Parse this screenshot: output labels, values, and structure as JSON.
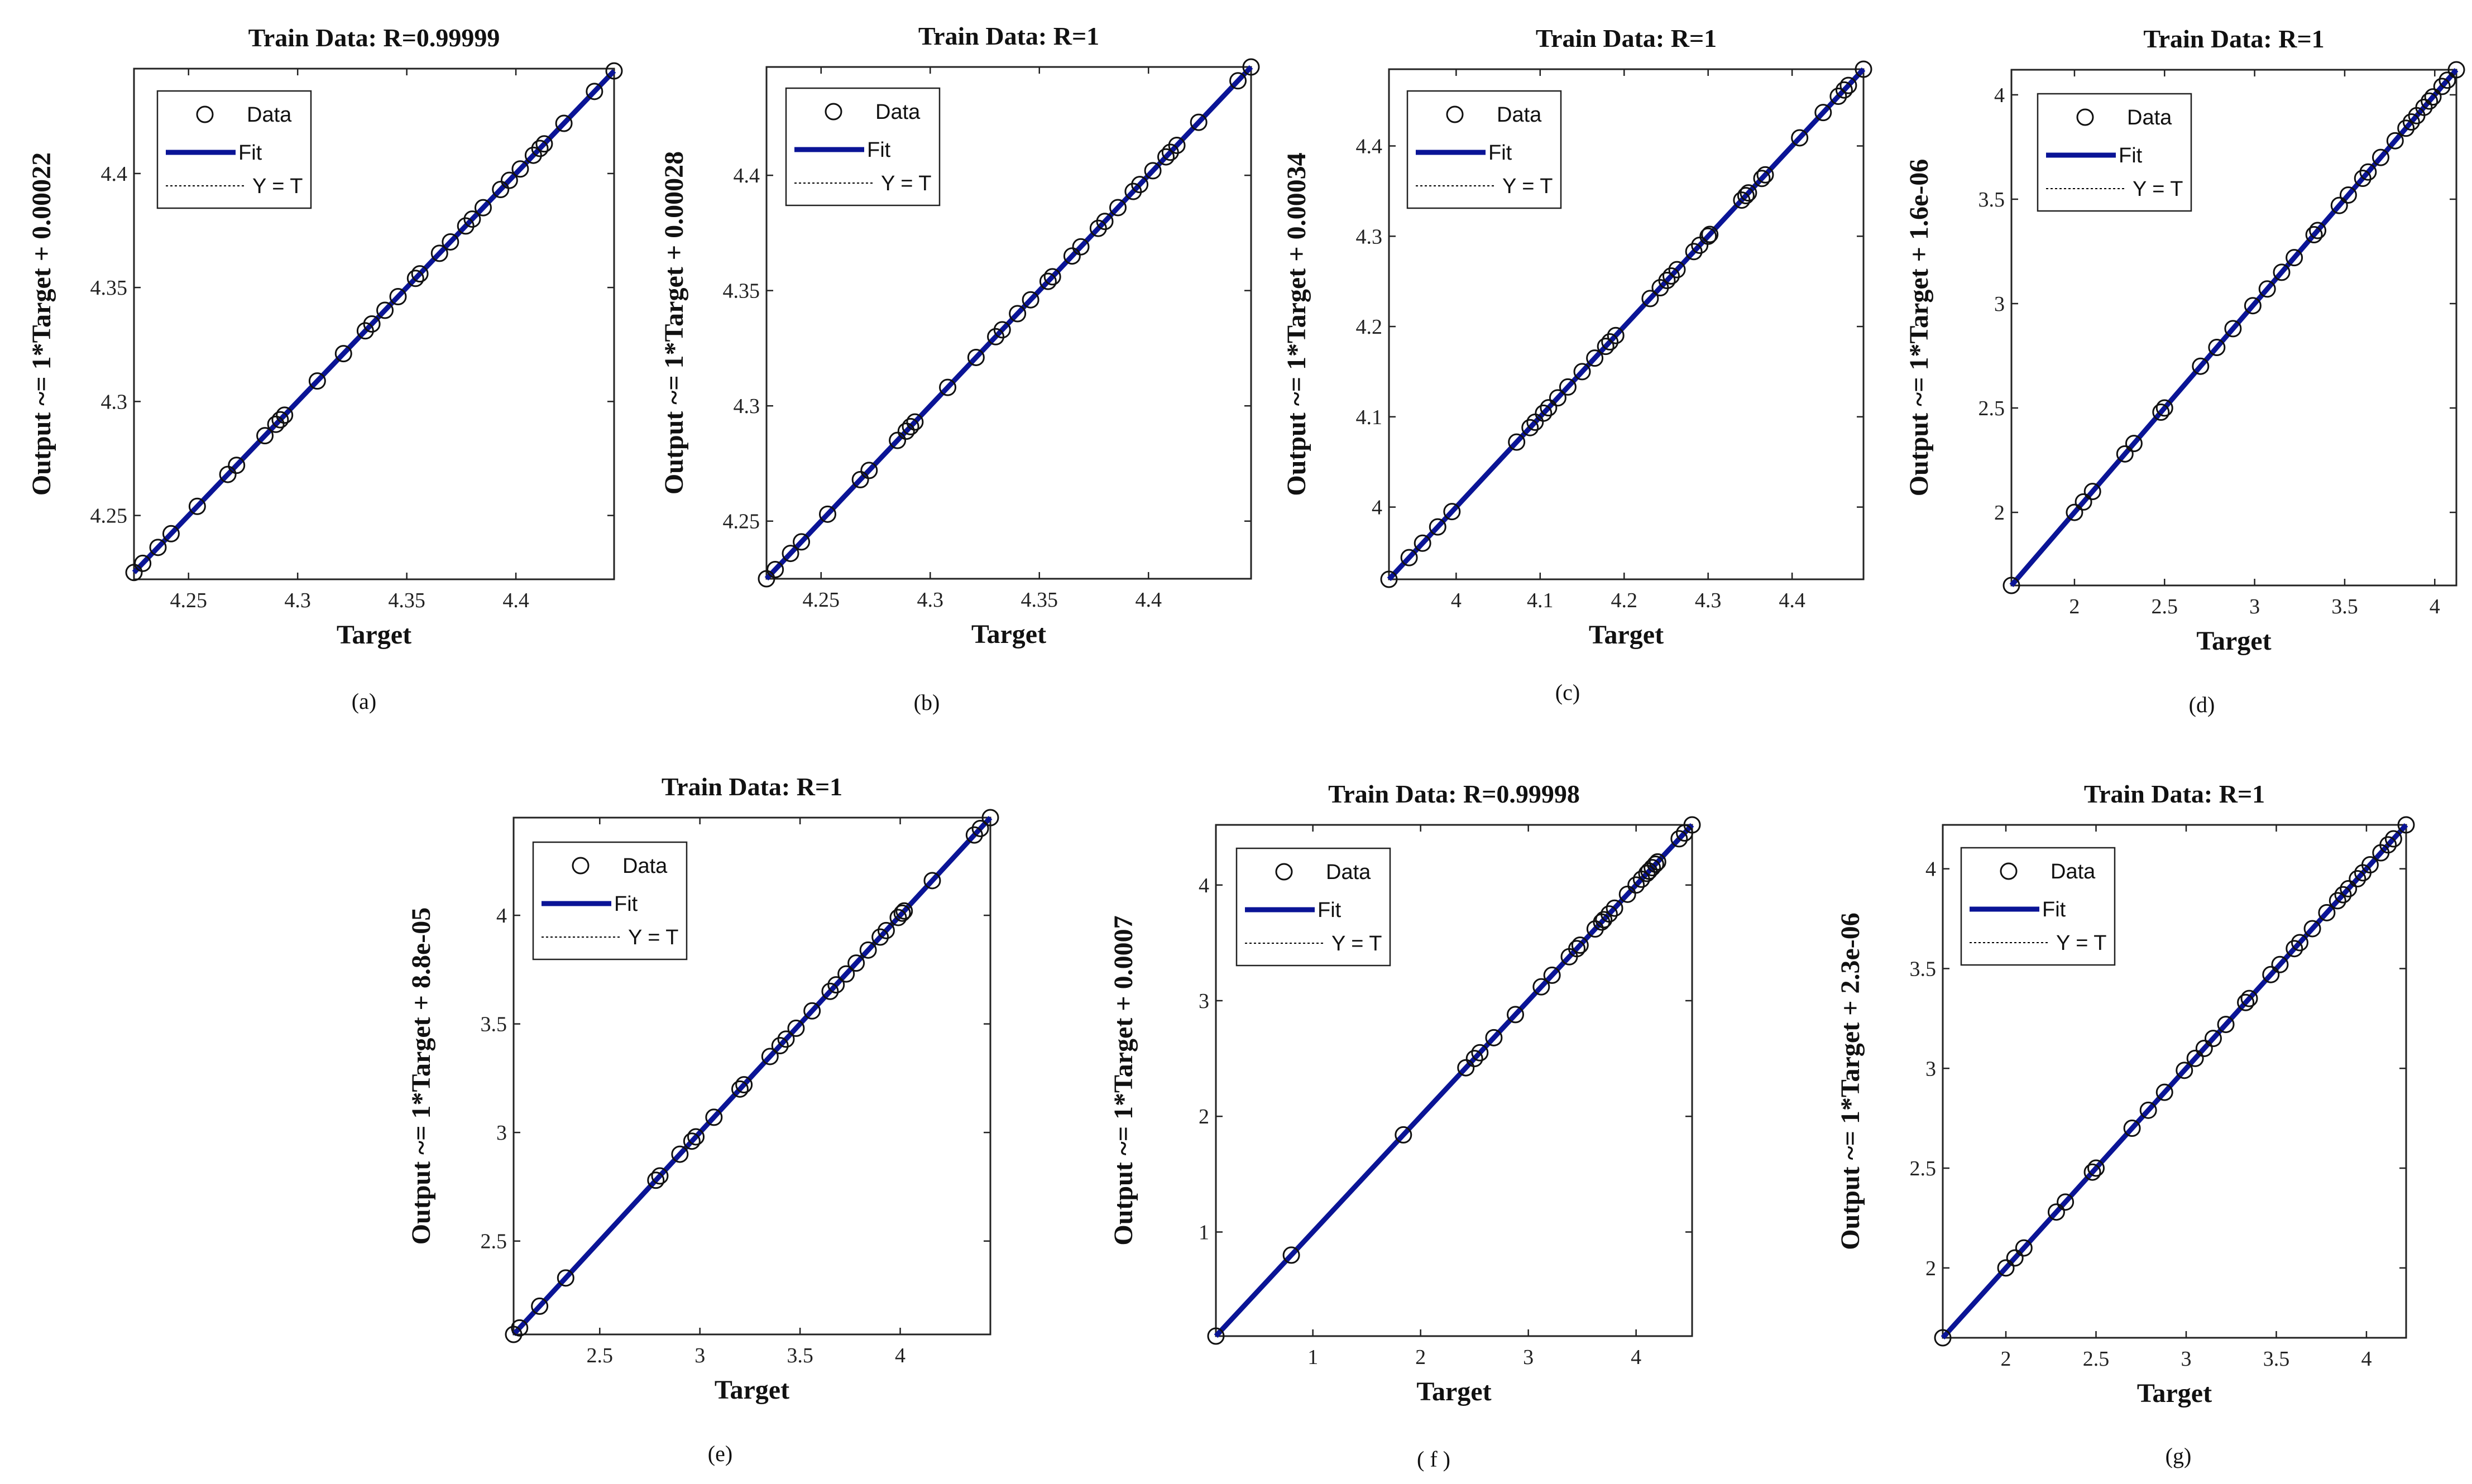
{
  "figure": {
    "legend": {
      "data_label": "Data",
      "fit_label": "Fit",
      "yt_label": "Y = T"
    },
    "xlabel": "Target",
    "colors": {
      "fit": "#0a1496",
      "axes": "#222222",
      "points": "#111111"
    }
  },
  "chart_data": [
    {
      "id": "a",
      "type": "scatter",
      "title": "Train Data: R=0.99999",
      "xlabel": "Target",
      "ylabel": "Output ~= 1*Target + 0.00022",
      "caption": "(a)",
      "xlim": [
        4.225,
        4.445
      ],
      "ylim": [
        4.222,
        4.446
      ],
      "xticks": [
        4.25,
        4.3,
        4.35,
        4.4
      ],
      "xtick_labels": [
        "4.25",
        "4.3",
        "4.35",
        "4.4"
      ],
      "yticks": [
        4.25,
        4.3,
        4.35,
        4.4
      ],
      "ytick_labels": [
        "4.25",
        "4.3",
        "4.35",
        "4.4"
      ],
      "points": [
        4.225,
        4.229,
        4.236,
        4.242,
        4.254,
        4.268,
        4.272,
        4.285,
        4.29,
        4.292,
        4.294,
        4.309,
        4.321,
        4.331,
        4.334,
        4.34,
        4.346,
        4.354,
        4.356,
        4.365,
        4.37,
        4.377,
        4.38,
        4.385,
        4.393,
        4.397,
        4.402,
        4.408,
        4.411,
        4.413,
        4.422,
        4.436,
        4.445
      ],
      "fit_range": [
        4.225,
        4.445
      ]
    },
    {
      "id": "b",
      "type": "scatter",
      "title": "Train Data: R=1",
      "xlabel": "Target",
      "ylabel": "Output ~= 1*Target + 0.00028",
      "caption": "(b)",
      "xlim": [
        4.225,
        4.447
      ],
      "ylim": [
        4.225,
        4.447
      ],
      "xticks": [
        4.25,
        4.3,
        4.35,
        4.4
      ],
      "xtick_labels": [
        "4.25",
        "4.3",
        "4.35",
        "4.4"
      ],
      "yticks": [
        4.25,
        4.3,
        4.35,
        4.4
      ],
      "ytick_labels": [
        "4.25",
        "4.3",
        "4.35",
        "4.4"
      ],
      "points": [
        4.225,
        4.229,
        4.236,
        4.241,
        4.253,
        4.268,
        4.272,
        4.285,
        4.289,
        4.291,
        4.293,
        4.308,
        4.321,
        4.33,
        4.333,
        4.34,
        4.346,
        4.354,
        4.356,
        4.365,
        4.369,
        4.377,
        4.38,
        4.386,
        4.393,
        4.396,
        4.402,
        4.408,
        4.41,
        4.413,
        4.423,
        4.441,
        4.447
      ],
      "fit_range": [
        4.225,
        4.447
      ]
    },
    {
      "id": "c",
      "type": "scatter",
      "title": "Train Data: R=1",
      "xlabel": "Target",
      "ylabel": "Output ~= 1*Target + 0.00034",
      "caption": "(c)",
      "xlim": [
        3.92,
        4.485
      ],
      "ylim": [
        3.92,
        4.485
      ],
      "xticks": [
        4.0,
        4.1,
        4.2,
        4.3,
        4.4
      ],
      "xtick_labels": [
        "4",
        "4.1",
        "4.2",
        "4.3",
        "4.4"
      ],
      "yticks": [
        4.0,
        4.1,
        4.2,
        4.3,
        4.4
      ],
      "ytick_labels": [
        "4",
        "4.1",
        "4.2",
        "4.3",
        "4.4"
      ],
      "points": [
        3.92,
        3.944,
        3.96,
        3.978,
        3.995,
        4.072,
        4.088,
        4.094,
        4.104,
        4.11,
        4.121,
        4.133,
        4.15,
        4.165,
        4.178,
        4.183,
        4.19,
        4.231,
        4.243,
        4.251,
        4.256,
        4.263,
        4.283,
        4.29,
        4.3,
        4.302,
        4.34,
        4.345,
        4.348,
        4.364,
        4.368,
        4.409,
        4.437,
        4.455,
        4.462,
        4.467,
        4.485
      ],
      "fit_range": [
        3.92,
        4.485
      ]
    },
    {
      "id": "d",
      "type": "scatter",
      "title": "Train Data: R=1",
      "xlabel": "Target",
      "ylabel": "Output ~= 1*Target + 1.6e-06",
      "caption": "(d)",
      "xlim": [
        1.65,
        4.12
      ],
      "ylim": [
        1.65,
        4.12
      ],
      "xticks": [
        2,
        2.5,
        3,
        3.5,
        4
      ],
      "xtick_labels": [
        "2",
        "2.5",
        "3",
        "3.5",
        "4"
      ],
      "yticks": [
        2,
        2.5,
        3,
        3.5,
        4
      ],
      "ytick_labels": [
        "2",
        "2.5",
        "3",
        "3.5",
        "4"
      ],
      "points": [
        1.65,
        2.0,
        2.05,
        2.1,
        2.28,
        2.33,
        2.48,
        2.5,
        2.7,
        2.79,
        2.88,
        2.99,
        3.07,
        3.15,
        3.22,
        3.33,
        3.35,
        3.47,
        3.52,
        3.6,
        3.63,
        3.7,
        3.78,
        3.84,
        3.87,
        3.9,
        3.94,
        3.97,
        3.99,
        4.04,
        4.07,
        4.12
      ],
      "fit_range": [
        1.65,
        4.12
      ]
    },
    {
      "id": "e",
      "type": "scatter",
      "title": "Train Data: R=1",
      "xlabel": "Target",
      "ylabel": "Output ~= 1*Target + 8.8e-05",
      "caption": "(e)",
      "xlim": [
        2.07,
        4.45
      ],
      "ylim": [
        2.07,
        4.45
      ],
      "xticks": [
        2.5,
        3,
        3.5,
        4
      ],
      "xtick_labels": [
        "2.5",
        "3",
        "3.5",
        "4"
      ],
      "yticks": [
        2.5,
        3,
        3.5,
        4
      ],
      "ytick_labels": [
        "2.5",
        "3",
        "3.5",
        "4"
      ],
      "points": [
        2.07,
        2.1,
        2.2,
        2.33,
        2.78,
        2.8,
        2.9,
        2.96,
        2.98,
        3.07,
        3.2,
        3.22,
        3.35,
        3.4,
        3.43,
        3.48,
        3.56,
        3.65,
        3.68,
        3.73,
        3.78,
        3.84,
        3.9,
        3.93,
        3.99,
        4.01,
        4.02,
        4.16,
        4.37,
        4.4,
        4.45
      ],
      "fit_range": [
        2.07,
        4.45
      ]
    },
    {
      "id": "f",
      "type": "scatter",
      "title": "Train Data: R=0.99998",
      "xlabel": "Target",
      "ylabel": "Output ~= 1*Target + 0.0007",
      "caption": "( f )",
      "xlim": [
        0.1,
        4.52
      ],
      "ylim": [
        0.1,
        4.52
      ],
      "xticks": [
        1,
        2,
        3,
        4
      ],
      "xtick_labels": [
        "1",
        "2",
        "3",
        "4"
      ],
      "yticks": [
        1,
        2,
        3,
        4
      ],
      "ytick_labels": [
        "1",
        "2",
        "3",
        "4"
      ],
      "points": [
        0.1,
        0.8,
        1.84,
        2.42,
        2.5,
        2.55,
        2.68,
        2.88,
        3.12,
        3.22,
        3.38,
        3.45,
        3.48,
        3.62,
        3.68,
        3.7,
        3.75,
        3.8,
        3.92,
        4.0,
        4.05,
        4.1,
        4.12,
        4.15,
        4.18,
        4.2,
        4.4,
        4.45,
        4.52
      ],
      "fit_range": [
        0.1,
        4.52
      ]
    },
    {
      "id": "g",
      "type": "scatter",
      "title": "Train Data: R=1",
      "xlabel": "Target",
      "ylabel": "Output ~= 1*Target + 2.3e-06",
      "caption": "(g)",
      "xlim": [
        1.65,
        4.22
      ],
      "ylim": [
        1.65,
        4.22
      ],
      "xticks": [
        2,
        2.5,
        3,
        3.5,
        4
      ],
      "xtick_labels": [
        "2",
        "2.5",
        "3",
        "3.5",
        "4"
      ],
      "yticks": [
        2,
        2.5,
        3,
        3.5,
        4
      ],
      "ytick_labels": [
        "2",
        "2.5",
        "3",
        "3.5",
        "4"
      ],
      "points": [
        1.65,
        2.0,
        2.05,
        2.1,
        2.28,
        2.33,
        2.48,
        2.5,
        2.7,
        2.79,
        2.88,
        2.99,
        3.05,
        3.1,
        3.15,
        3.22,
        3.33,
        3.35,
        3.47,
        3.52,
        3.6,
        3.63,
        3.7,
        3.78,
        3.84,
        3.87,
        3.9,
        3.95,
        3.98,
        4.02,
        4.08,
        4.12,
        4.15,
        4.22
      ],
      "fit_range": [
        1.65,
        4.22
      ]
    }
  ]
}
